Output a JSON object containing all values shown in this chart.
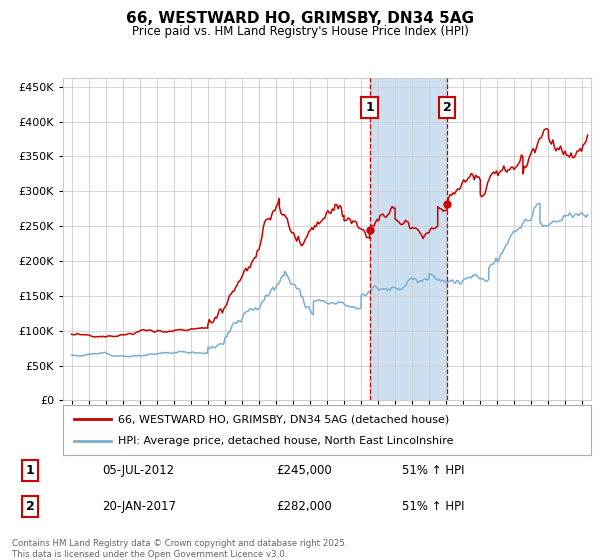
{
  "title": "66, WESTWARD HO, GRIMSBY, DN34 5AG",
  "subtitle": "Price paid vs. HM Land Registry's House Price Index (HPI)",
  "y_values": [
    0,
    50000,
    100000,
    150000,
    200000,
    250000,
    300000,
    350000,
    400000,
    450000
  ],
  "ylim": [
    0,
    462000
  ],
  "xlim_start": 1994.5,
  "xlim_end": 2025.5,
  "sale1_date": 2012.5,
  "sale1_price": 245000,
  "sale1_label": "1",
  "sale2_date": 2017.05,
  "sale2_price": 282000,
  "sale2_label": "2",
  "red_line_color": "#cc0000",
  "blue_line_color": "#7aadcf",
  "shade_color": "#ccdff0",
  "vertical_line_color": "#cc0000",
  "grid_color": "#cccccc",
  "background_color": "#ffffff",
  "legend1": "66, WESTWARD HO, GRIMSBY, DN34 5AG (detached house)",
  "legend2": "HPI: Average price, detached house, North East Lincolnshire",
  "note1_num": "1",
  "note1_date": "05-JUL-2012",
  "note1_price": "£245,000",
  "note1_hpi": "51% ↑ HPI",
  "note2_num": "2",
  "note2_date": "20-JAN-2017",
  "note2_price": "£282,000",
  "note2_hpi": "51% ↑ HPI",
  "copyright": "Contains HM Land Registry data © Crown copyright and database right 2025.\nThis data is licensed under the Open Government Licence v3.0."
}
